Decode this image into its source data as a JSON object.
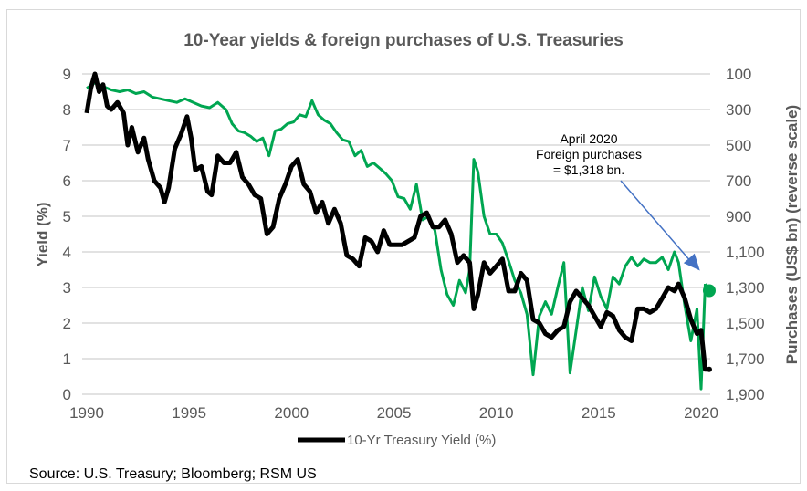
{
  "chart_data": {
    "type": "line",
    "title": "10-Year yields & foreign purchases of U.S. Treasuries",
    "xlabel": "",
    "ylabel": "Yield (%)",
    "y2label": "Purchases (US$ bn) (reverse scale)",
    "xlim": [
      1990,
      2020.6
    ],
    "ylim": [
      0,
      9
    ],
    "y2lim": [
      1900,
      100
    ],
    "y2_reversed": true,
    "grid": true,
    "x_ticks": [
      "1990",
      "1995",
      "2000",
      "2005",
      "2010",
      "2015",
      "2020"
    ],
    "y_ticks": [
      "0",
      "1",
      "2",
      "3",
      "4",
      "5",
      "6",
      "7",
      "8",
      "9"
    ],
    "y2_ticks": [
      "100",
      "300",
      "500",
      "700",
      "900",
      "1,100",
      "1,300",
      "1,500",
      "1,700",
      "1,900"
    ],
    "legend": {
      "placement": "bottom",
      "entries": [
        "10-Yr Treasury Yield (%)"
      ]
    },
    "series": [
      {
        "name": "10-Yr Treasury Yield (%)",
        "axis": "left",
        "color": "#000000",
        "x": [
          1990.0,
          1990.2,
          1990.4,
          1990.6,
          1990.8,
          1991.0,
          1991.2,
          1991.5,
          1991.8,
          1992.0,
          1992.2,
          1992.5,
          1992.8,
          1993.0,
          1993.3,
          1993.6,
          1993.8,
          1994.0,
          1994.3,
          1994.6,
          1994.9,
          1995.1,
          1995.3,
          1995.6,
          1995.9,
          1996.1,
          1996.4,
          1996.7,
          1997.0,
          1997.3,
          1997.6,
          1997.9,
          1998.2,
          1998.5,
          1998.8,
          1999.1,
          1999.4,
          1999.7,
          2000.0,
          2000.3,
          2000.6,
          2000.9,
          2001.2,
          2001.5,
          2001.8,
          2002.1,
          2002.4,
          2002.7,
          2003.0,
          2003.3,
          2003.6,
          2003.9,
          2004.2,
          2004.5,
          2004.8,
          2005.1,
          2005.4,
          2005.7,
          2006.0,
          2006.3,
          2006.6,
          2006.9,
          2007.2,
          2007.5,
          2007.8,
          2008.1,
          2008.4,
          2008.7,
          2008.9,
          2009.1,
          2009.4,
          2009.7,
          2010.0,
          2010.3,
          2010.6,
          2010.9,
          2011.2,
          2011.5,
          2011.8,
          2012.1,
          2012.4,
          2012.7,
          2013.0,
          2013.3,
          2013.6,
          2013.9,
          2014.2,
          2014.5,
          2014.8,
          2015.1,
          2015.4,
          2015.7,
          2016.0,
          2016.3,
          2016.6,
          2016.9,
          2017.2,
          2017.5,
          2017.8,
          2018.1,
          2018.4,
          2018.7,
          2018.9,
          2019.2,
          2019.5,
          2019.8,
          2020.0,
          2020.2,
          2020.4
        ],
        "values": [
          7.9,
          8.6,
          9.0,
          8.5,
          8.7,
          8.1,
          8.0,
          8.2,
          7.9,
          7.0,
          7.5,
          6.8,
          7.2,
          6.6,
          6.0,
          5.8,
          5.4,
          5.8,
          6.9,
          7.3,
          7.8,
          7.2,
          6.3,
          6.4,
          5.7,
          5.6,
          6.7,
          6.5,
          6.5,
          6.8,
          6.1,
          5.9,
          5.6,
          5.5,
          4.5,
          4.7,
          5.5,
          5.9,
          6.4,
          6.6,
          5.9,
          5.7,
          5.1,
          5.4,
          4.8,
          5.2,
          4.8,
          3.9,
          3.8,
          3.6,
          4.4,
          4.3,
          4.0,
          4.6,
          4.2,
          4.2,
          4.2,
          4.3,
          4.4,
          5.0,
          5.1,
          4.7,
          4.7,
          4.9,
          4.5,
          3.7,
          3.9,
          3.7,
          2.4,
          2.8,
          3.7,
          3.4,
          3.6,
          3.8,
          2.9,
          2.9,
          3.4,
          3.2,
          2.1,
          2.0,
          1.7,
          1.6,
          1.8,
          1.9,
          2.6,
          2.9,
          2.7,
          2.5,
          2.2,
          1.9,
          2.3,
          2.2,
          1.8,
          1.6,
          1.5,
          2.4,
          2.4,
          2.3,
          2.4,
          2.7,
          3.0,
          2.9,
          3.1,
          2.7,
          2.1,
          1.7,
          1.8,
          0.7,
          0.7
        ]
      },
      {
        "name": "Foreign purchases of U.S. Treasuries",
        "axis": "right",
        "color": "#00A651",
        "x": [
          1990.0,
          1990.4,
          1990.8,
          1991.2,
          1991.6,
          1992.0,
          1992.4,
          1992.8,
          1993.2,
          1993.6,
          1994.0,
          1994.4,
          1994.8,
          1995.2,
          1995.6,
          1996.0,
          1996.4,
          1996.8,
          1997.1,
          1997.4,
          1997.7,
          1998.0,
          1998.3,
          1998.6,
          1998.9,
          1999.2,
          1999.5,
          1999.8,
          2000.1,
          2000.4,
          2000.7,
          2001.0,
          2001.3,
          2001.6,
          2001.9,
          2002.2,
          2002.5,
          2002.8,
          2003.1,
          2003.4,
          2003.7,
          2004.0,
          2004.3,
          2004.6,
          2004.9,
          2005.2,
          2005.5,
          2005.8,
          2006.1,
          2006.4,
          2006.7,
          2007.0,
          2007.3,
          2007.6,
          2007.9,
          2008.2,
          2008.5,
          2008.7,
          2008.9,
          2009.1,
          2009.4,
          2009.7,
          2010.0,
          2010.3,
          2010.6,
          2010.9,
          2011.2,
          2011.5,
          2011.8,
          2012.1,
          2012.4,
          2012.7,
          2013.0,
          2013.3,
          2013.6,
          2013.9,
          2014.2,
          2014.5,
          2014.8,
          2015.1,
          2015.4,
          2015.7,
          2016.0,
          2016.3,
          2016.6,
          2016.9,
          2017.2,
          2017.5,
          2017.8,
          2018.1,
          2018.4,
          2018.7,
          2018.9,
          2019.2,
          2019.5,
          2019.8,
          2020.0,
          2020.2,
          2020.4
        ],
        "values": [
          180,
          150,
          170,
          190,
          200,
          190,
          210,
          200,
          230,
          240,
          250,
          260,
          240,
          260,
          280,
          290,
          260,
          300,
          380,
          420,
          430,
          450,
          480,
          460,
          560,
          420,
          410,
          380,
          370,
          330,
          340,
          250,
          330,
          360,
          380,
          430,
          470,
          480,
          560,
          530,
          620,
          600,
          630,
          660,
          700,
          790,
          800,
          860,
          720,
          920,
          900,
          980,
          1200,
          1340,
          1400,
          1260,
          1330,
          1200,
          580,
          650,
          900,
          1000,
          1000,
          1050,
          1150,
          1260,
          1330,
          1450,
          1790,
          1460,
          1380,
          1450,
          1300,
          1160,
          1780,
          1540,
          1300,
          1430,
          1240,
          1350,
          1420,
          1240,
          1280,
          1180,
          1130,
          1180,
          1140,
          1160,
          1160,
          1130,
          1200,
          1100,
          1160,
          1400,
          1600,
          1420,
          1870,
          1280,
          1318
        ]
      }
    ],
    "annotations": [
      {
        "text_lines": [
          "April 2020",
          "Foreign purchases",
          "= $1,318  bn."
        ],
        "points_to_x": 2020.3,
        "points_to_y2": 1318
      }
    ],
    "source": "Source: U.S. Treasury; Bloomberg; RSM US"
  }
}
